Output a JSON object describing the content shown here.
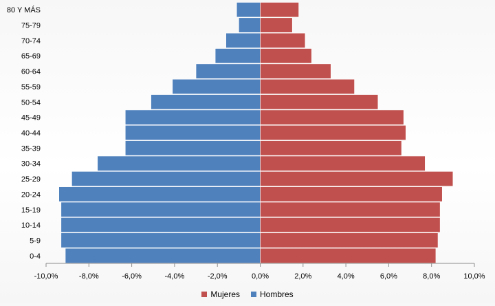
{
  "chart_data": {
    "type": "bar",
    "orientation": "horizontal",
    "categories": [
      "0-4",
      "5-9",
      "10-14",
      "15-19",
      "20-24",
      "25-29",
      "30-34",
      "35-39",
      "40-44",
      "45-49",
      "50-54",
      "55-59",
      "60-64",
      "65-69",
      "70-74",
      "75-79",
      "80 Y MÁS"
    ],
    "series": [
      {
        "name": "Mujeres",
        "color": "#c0504d",
        "values": [
          8.2,
          8.3,
          8.4,
          8.4,
          8.5,
          9.0,
          7.7,
          6.6,
          6.8,
          6.7,
          5.5,
          4.4,
          3.3,
          2.4,
          2.1,
          1.5,
          1.8
        ]
      },
      {
        "name": "Hombres",
        "color": "#4f81bd",
        "values": [
          -9.1,
          -9.3,
          -9.3,
          -9.3,
          -9.4,
          -8.8,
          -7.6,
          -6.3,
          -6.3,
          -6.3,
          -5.1,
          -4.1,
          -3.0,
          -2.1,
          -1.6,
          -1.0,
          -1.1
        ]
      }
    ],
    "xlim": [
      -10,
      10
    ],
    "xticks": [
      "-10,0%",
      "-8,0%",
      "-6,0%",
      "-4,0%",
      "-2,0%",
      "0,0%",
      "2,0%",
      "4,0%",
      "6,0%",
      "8,0%",
      "10,0%"
    ],
    "title": "",
    "xlabel": "",
    "ylabel": "",
    "grid": false,
    "legend_position": "bottom"
  }
}
